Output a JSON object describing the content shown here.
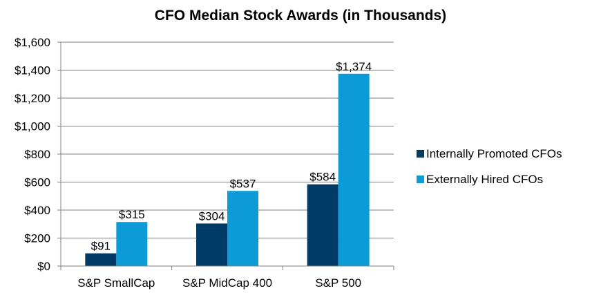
{
  "chart_data": {
    "type": "bar",
    "title": "CFO Median Stock Awards (in Thousands)",
    "categories": [
      "S&P SmallCap",
      "S&P MidCap 400",
      "S&P 500"
    ],
    "series": [
      {
        "name": "Internally Promoted CFOs",
        "values": [
          91,
          304,
          584
        ],
        "labels": [
          "$91",
          "$304",
          "$584"
        ],
        "color": "#003a66"
      },
      {
        "name": "Externally Hired CFOs",
        "values": [
          315,
          537,
          1374
        ],
        "labels": [
          "$315",
          "$537",
          "$1,374"
        ],
        "color": "#0d9bd7"
      }
    ],
    "ylim": [
      0,
      1600
    ],
    "yticks": [
      0,
      200,
      400,
      600,
      800,
      1000,
      1200,
      1400,
      1600
    ],
    "ytick_labels": [
      "$0",
      "$200",
      "$400",
      "$600",
      "$800",
      "$1,000",
      "$1,200",
      "$1,400",
      "$1,600"
    ],
    "grid": true,
    "legend": "right",
    "colors": {
      "gridline": "#808080",
      "axis": "#808080"
    }
  }
}
